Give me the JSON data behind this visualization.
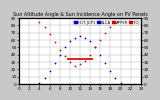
{
  "title": "Sun Altitude Angle & Sun Incidence Angle on PV Panels",
  "bg_color": "#c8c8c8",
  "plot_bg": "#ffffff",
  "grid_color": "#aaaaaa",
  "ylim": [
    0,
    90
  ],
  "xlim": [
    0,
    24
  ],
  "time_hours": [
    4,
    5,
    6,
    7,
    8,
    9,
    10,
    11,
    12,
    13,
    14,
    15,
    16,
    17,
    18,
    19,
    20
  ],
  "altitude": [
    2,
    8,
    18,
    29,
    40,
    50,
    58,
    63,
    65,
    63,
    58,
    50,
    40,
    29,
    18,
    8,
    2
  ],
  "incidence": [
    85,
    78,
    68,
    57,
    47,
    38,
    30,
    25,
    27,
    32,
    40,
    50,
    60,
    70,
    78,
    84,
    87
  ],
  "flat_line_x": [
    9.5,
    14.5
  ],
  "flat_line_y": [
    34,
    34
  ],
  "series1_color": "#0000cc",
  "series2_color": "#cc0000",
  "flat_line_color": "#cc0000",
  "dot_size": 2.5,
  "title_fontsize": 3.5,
  "tick_fontsize": 3,
  "legend_fontsize": 2.8,
  "legend_labels": [
    "HOT-JUP1",
    "BLCA",
    "APPER",
    "TO"
  ],
  "legend_colors": [
    "#0000cc",
    "#0000cc",
    "#cc0000",
    "#cc0000"
  ],
  "xticks": [
    0,
    2,
    4,
    6,
    8,
    10,
    12,
    14,
    16,
    18,
    20,
    22,
    24
  ],
  "yticks": [
    0,
    10,
    20,
    30,
    40,
    50,
    60,
    70,
    80,
    90
  ]
}
